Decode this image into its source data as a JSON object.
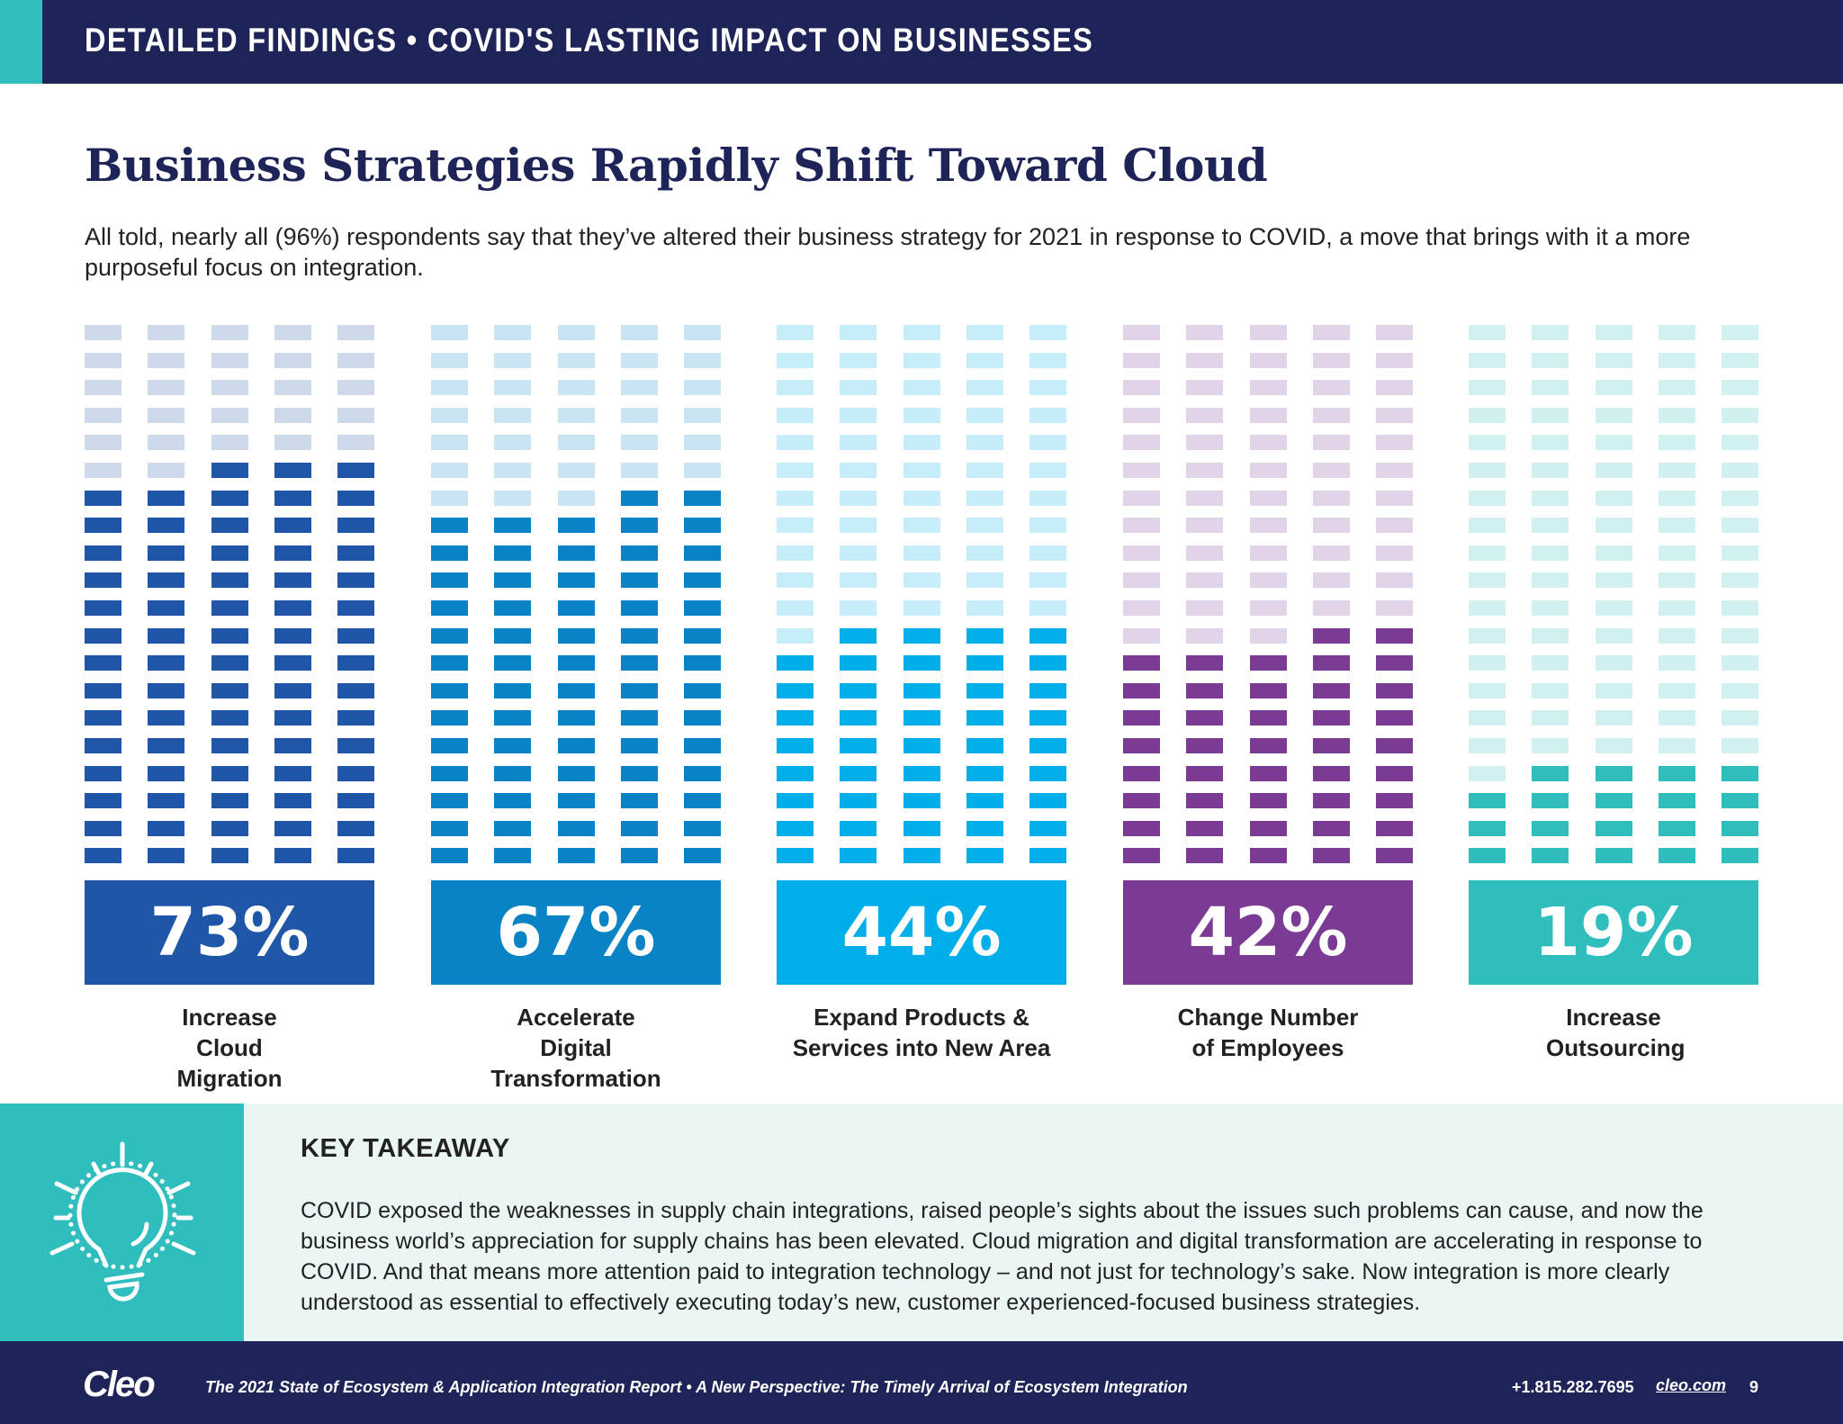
{
  "header": {
    "title": "DETAILED FINDINGS  •  COVID'S LASTING IMPACT ON BUSINESSES"
  },
  "title": "Business Strategies Rapidly Shift Toward Cloud",
  "intro": "All told, nearly all (96%) respondents say that they’ve altered their business strategy for 2021 in response to COVID, a move that brings with it a more purposeful focus on integration.",
  "chart_data": {
    "type": "waffle",
    "total_cells": 100,
    "columns": 5,
    "series": [
      {
        "label": "Increase Cloud Migration",
        "value": 73,
        "display": "73%",
        "color": "#1f56a8"
      },
      {
        "label": "Accelerate Digital Transformation",
        "value": 67,
        "display": "67%",
        "color": "#0a82c6"
      },
      {
        "label": "Expand Products & Services into New Area",
        "value": 44,
        "display": "44%",
        "color": "#00aeea"
      },
      {
        "label": "Change Number of Employees",
        "value": 42,
        "display": "42%",
        "color": "#7b3a94"
      },
      {
        "label": "Increase Outsourcing",
        "value": 19,
        "display": "19%",
        "color": "#2fbdbd"
      }
    ]
  },
  "takeaway": {
    "heading": "KEY TAKEAWAY",
    "icon": "lightbulb-icon",
    "body": "COVID exposed the weaknesses in supply chain integrations, raised people’s sights about the issues such problems can cause, and now the business world’s appreciation for supply chains has been elevated. Cloud migration and digital transformation are accelerating in response to COVID. And that means more attention paid to integration technology – and not just for technology’s sake. Now integration is more clearly understood as essential to effectively executing today’s new, customer experienced-focused business strategies."
  },
  "footer": {
    "logo": "Cleo",
    "report": "The 2021 State of Ecosystem & Application Integration Report  •  A New Perspective: The Timely Arrival of Ecosystem Integration",
    "phone": "+1.815.282.7695",
    "url": "cleo.com",
    "page": "9"
  }
}
